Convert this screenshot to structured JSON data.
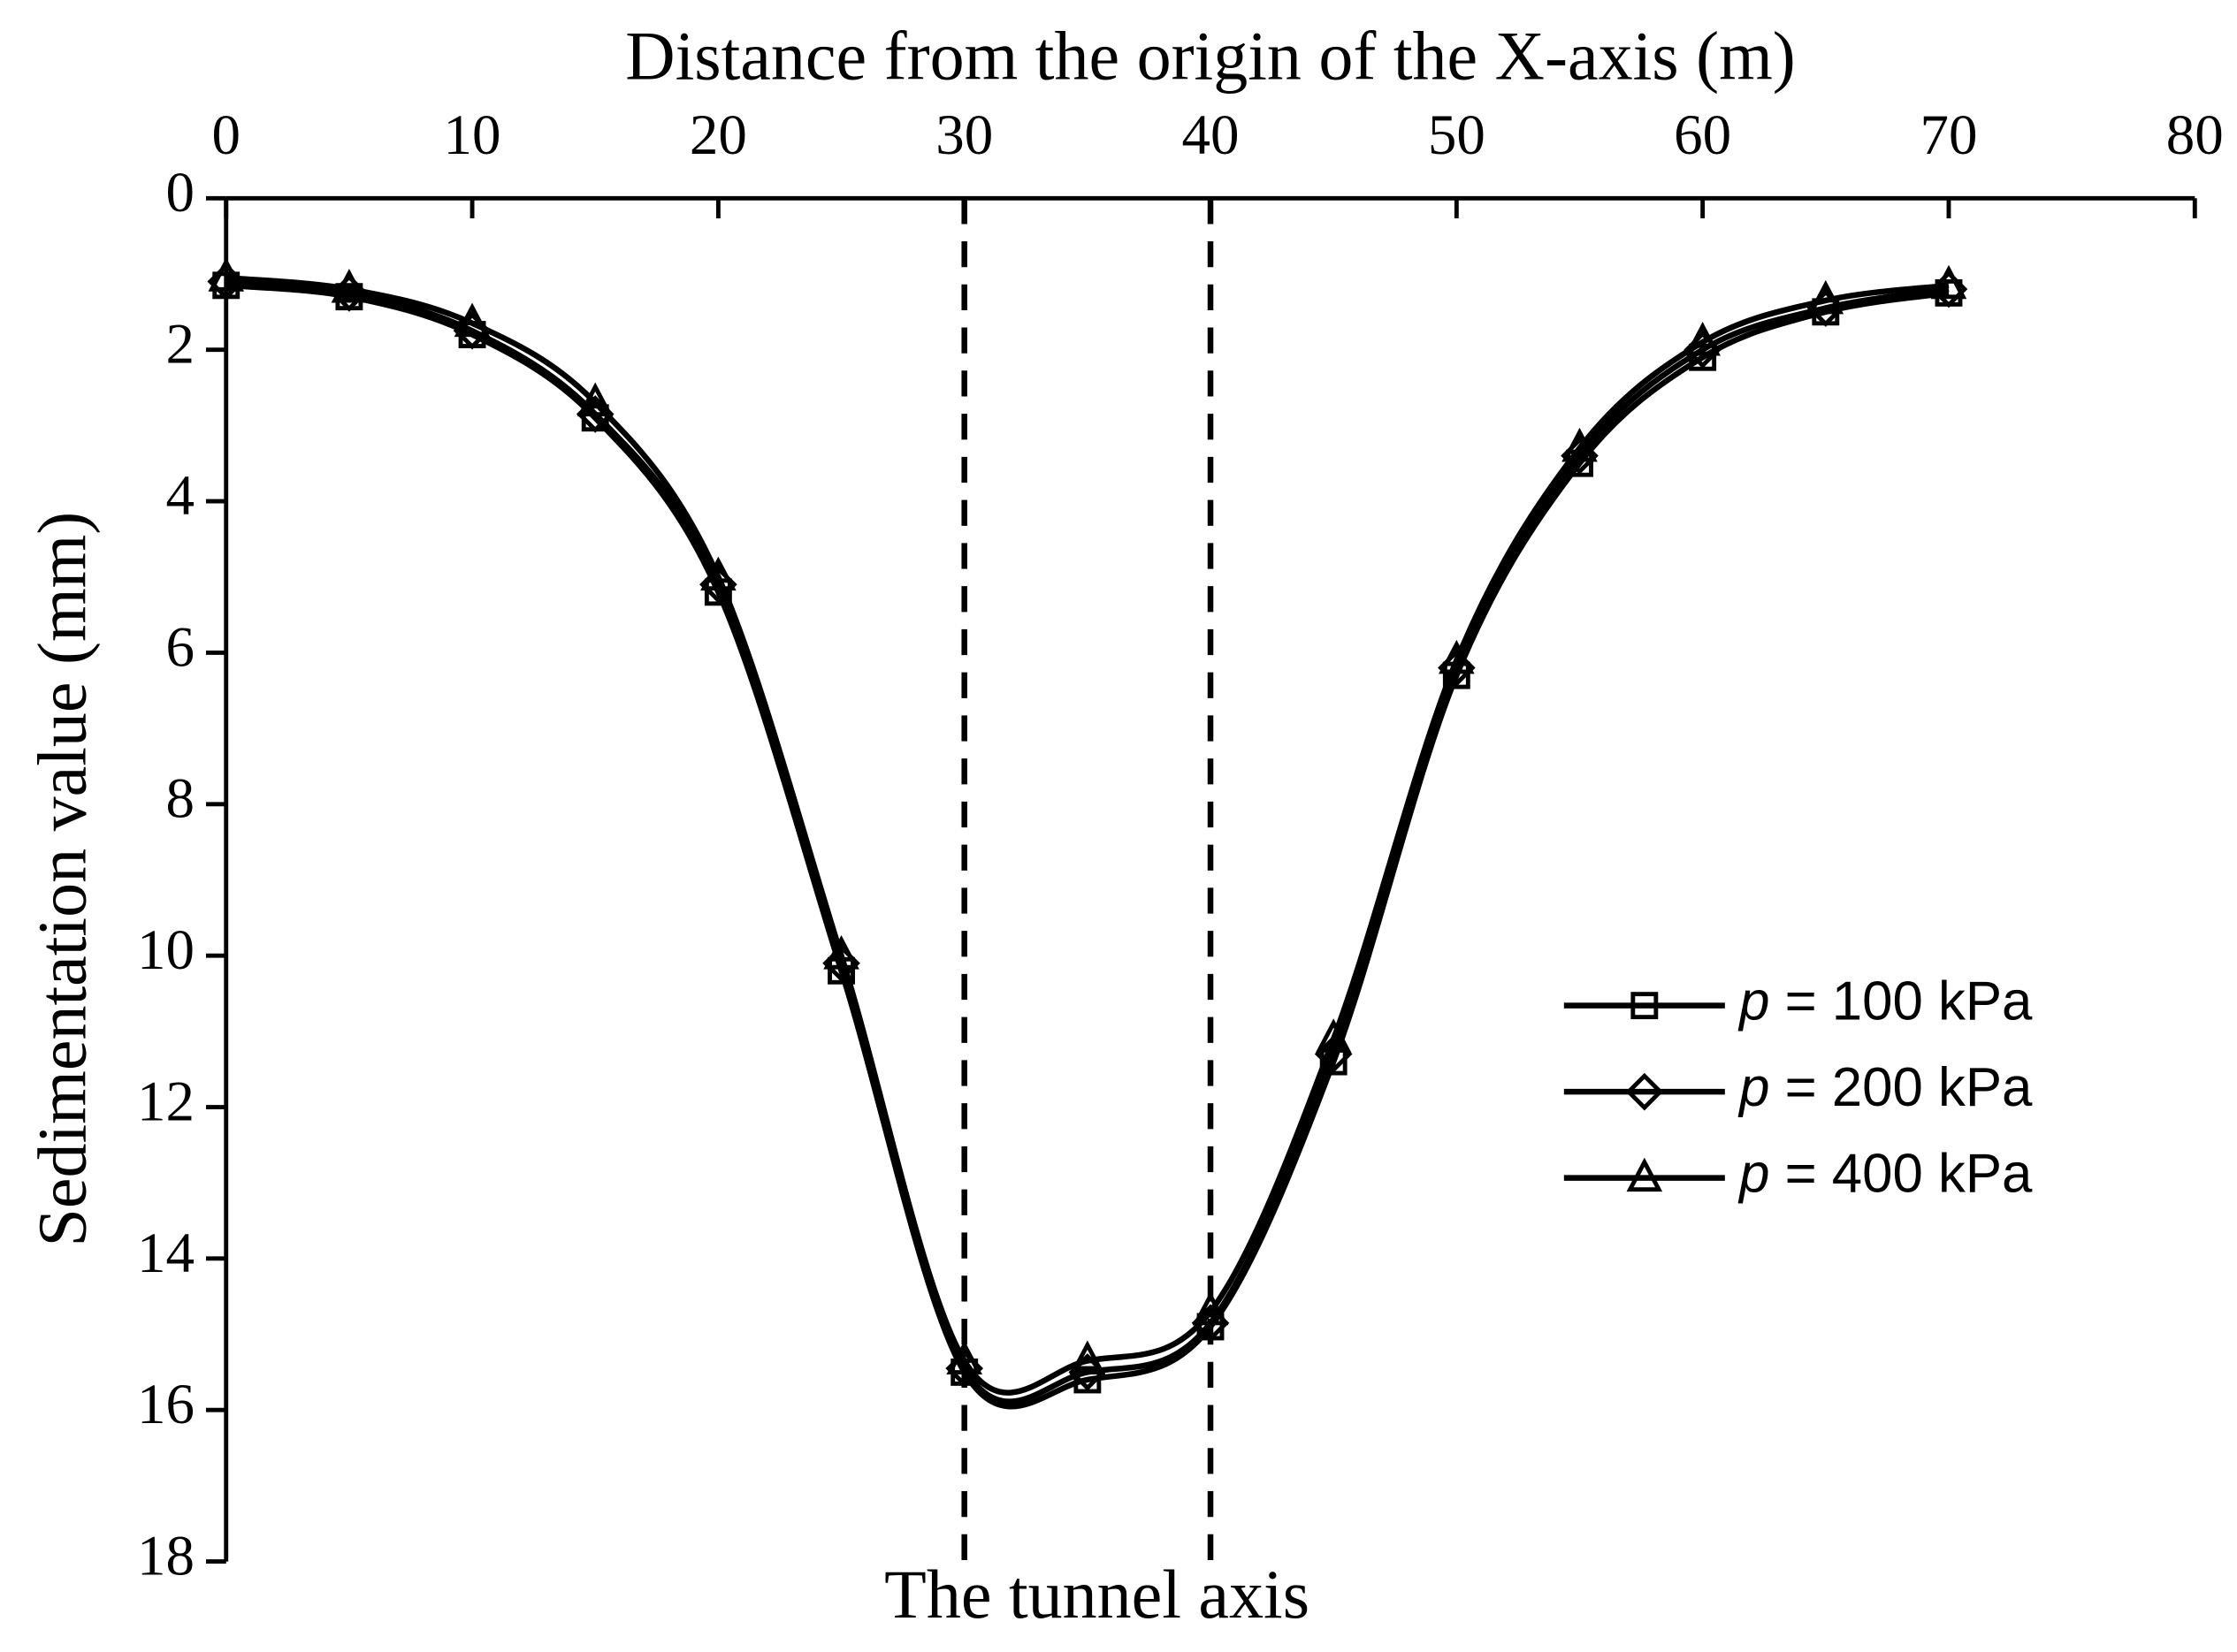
{
  "chart_data": {
    "type": "line",
    "xlabel": "Distance from the origin of the X-axis (m)",
    "ylabel": "Sedimentation value (mm)",
    "annotation": "The tunnel axis",
    "reference_lines": [
      30,
      40
    ],
    "x": [
      0,
      5,
      10,
      15,
      20,
      25,
      30,
      35,
      40,
      45,
      50,
      55,
      60,
      65,
      70
    ],
    "series": [
      {
        "name": "p = 100 kPa",
        "color": "#000000",
        "marker": "square",
        "values": [
          1.15,
          1.3,
          1.8,
          2.9,
          5.2,
          10.2,
          15.5,
          15.6,
          14.9,
          11.4,
          6.3,
          3.5,
          2.1,
          1.5,
          1.25
        ]
      },
      {
        "name": "p = 200 kPa",
        "color": "#000000",
        "marker": "diamond",
        "values": [
          1.1,
          1.25,
          1.75,
          2.85,
          5.1,
          10.1,
          15.45,
          15.5,
          14.85,
          11.3,
          6.2,
          3.4,
          2.0,
          1.45,
          1.2
        ]
      },
      {
        "name": "p = 400 kPa",
        "color": "#000000",
        "marker": "triangle",
        "values": [
          1.05,
          1.2,
          1.65,
          2.7,
          5.0,
          10.0,
          15.35,
          15.35,
          14.7,
          11.1,
          6.1,
          3.3,
          1.9,
          1.35,
          1.15
        ]
      }
    ],
    "xlim": [
      0,
      80
    ],
    "xticks": [
      0,
      10,
      20,
      30,
      40,
      50,
      60,
      70,
      80
    ],
    "ylim": [
      0,
      18
    ],
    "yticks": [
      0,
      2,
      4,
      6,
      8,
      10,
      12,
      14,
      16,
      18
    ],
    "y_inverted": true,
    "x_axis_position": "top",
    "grid": false,
    "legend": "right"
  }
}
